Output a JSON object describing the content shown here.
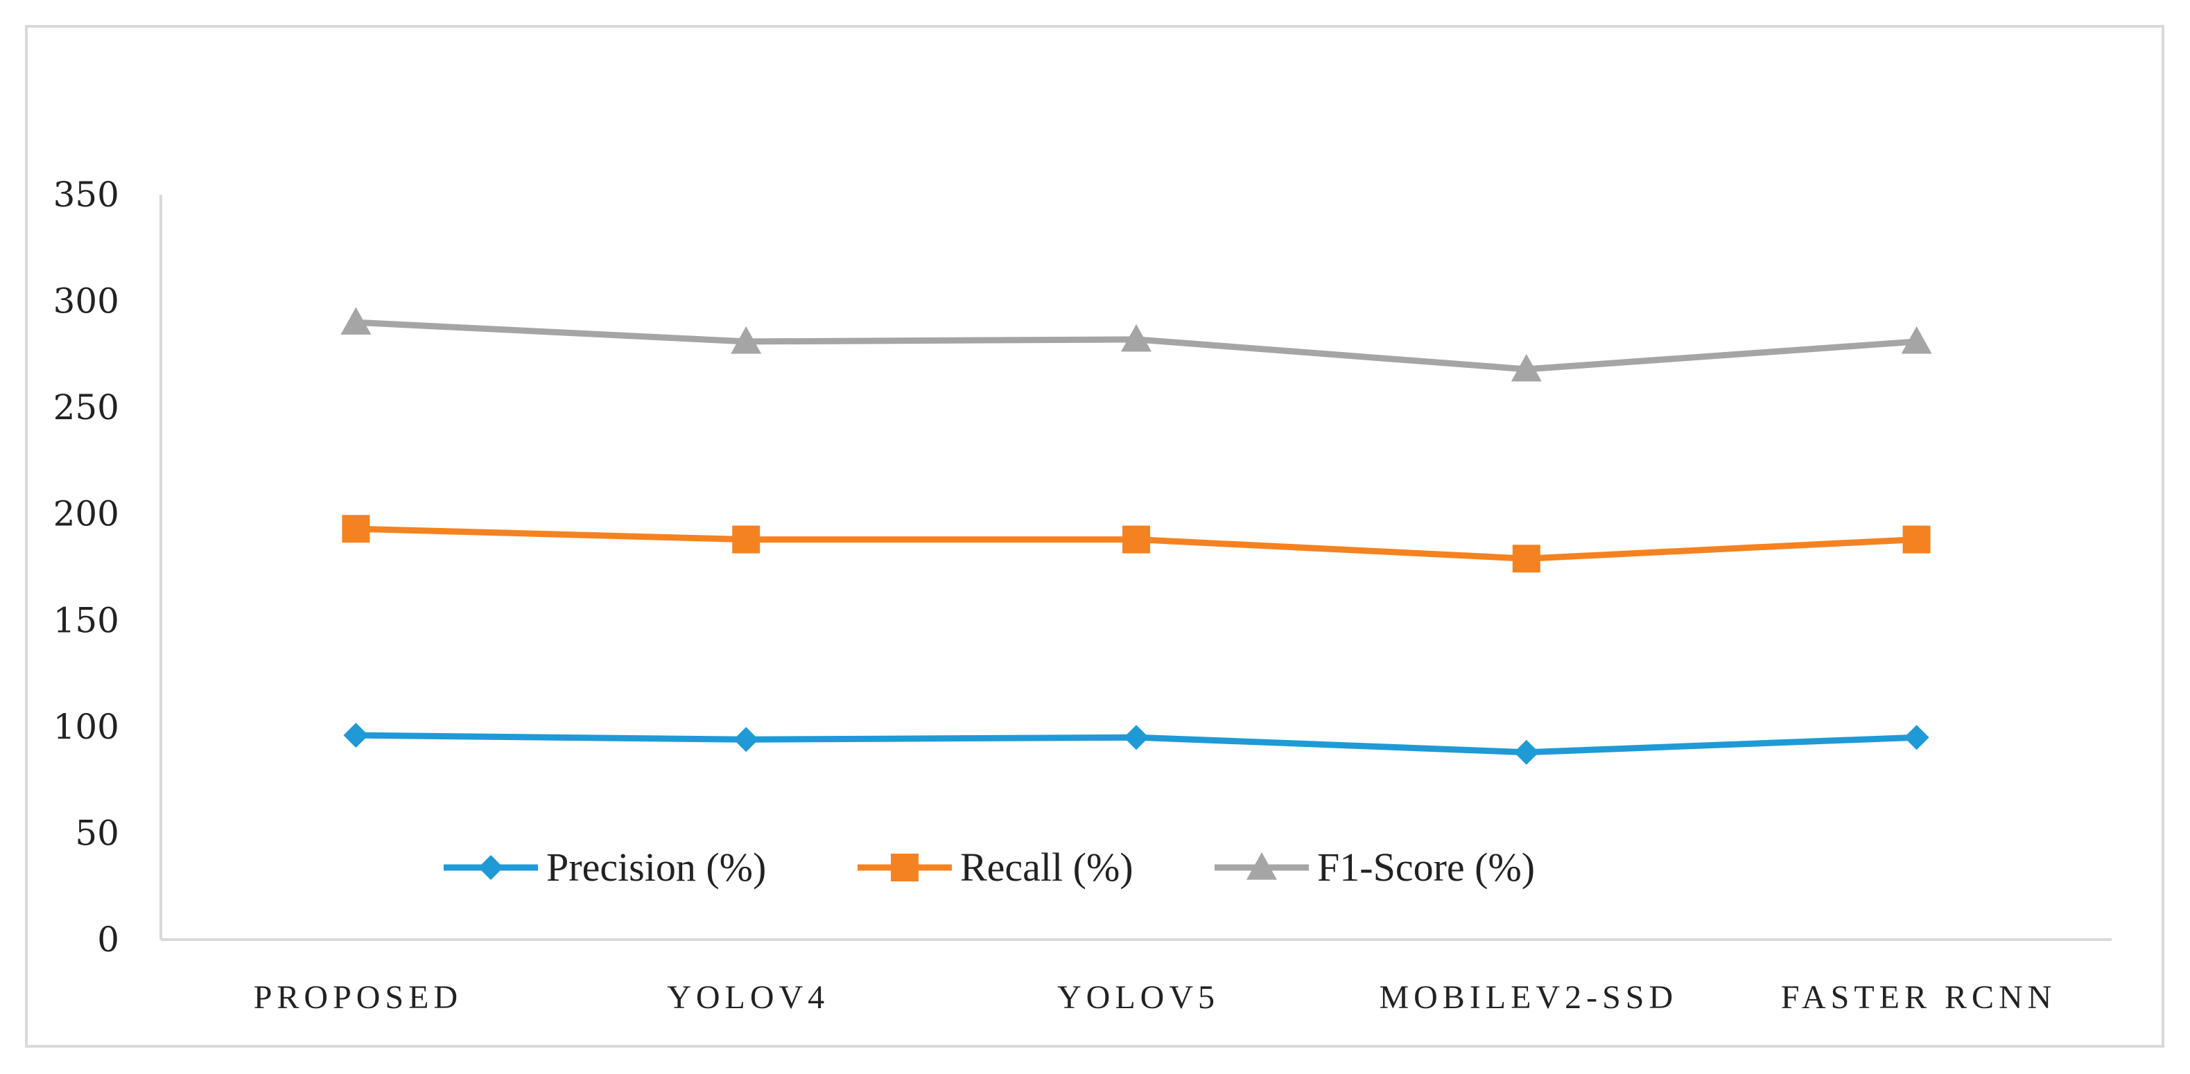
{
  "chart_data": {
    "type": "line",
    "title": "",
    "xlabel": "",
    "ylabel": "",
    "categories": [
      "PROPOSED",
      "YOLOV4",
      "YOLOV5",
      "MOBILEV2-SSD",
      "FASTER RCNN"
    ],
    "ylim": [
      0,
      350
    ],
    "yticks": [
      0,
      50,
      100,
      150,
      200,
      250,
      300,
      350
    ],
    "grid": false,
    "legend_position": "bottom-left inside plot",
    "series": [
      {
        "name": "Precision (%)",
        "color": "#1f9ad6",
        "marker": "diamond",
        "values": [
          96,
          94,
          95,
          88,
          95
        ]
      },
      {
        "name": "Recall (%)",
        "color": "#f58220",
        "marker": "square",
        "values": [
          193,
          188,
          188,
          179,
          188
        ]
      },
      {
        "name": "F1-Score (%)",
        "color": "#a5a5a5",
        "marker": "triangle",
        "values": [
          290,
          281,
          282,
          268,
          281
        ]
      }
    ]
  }
}
